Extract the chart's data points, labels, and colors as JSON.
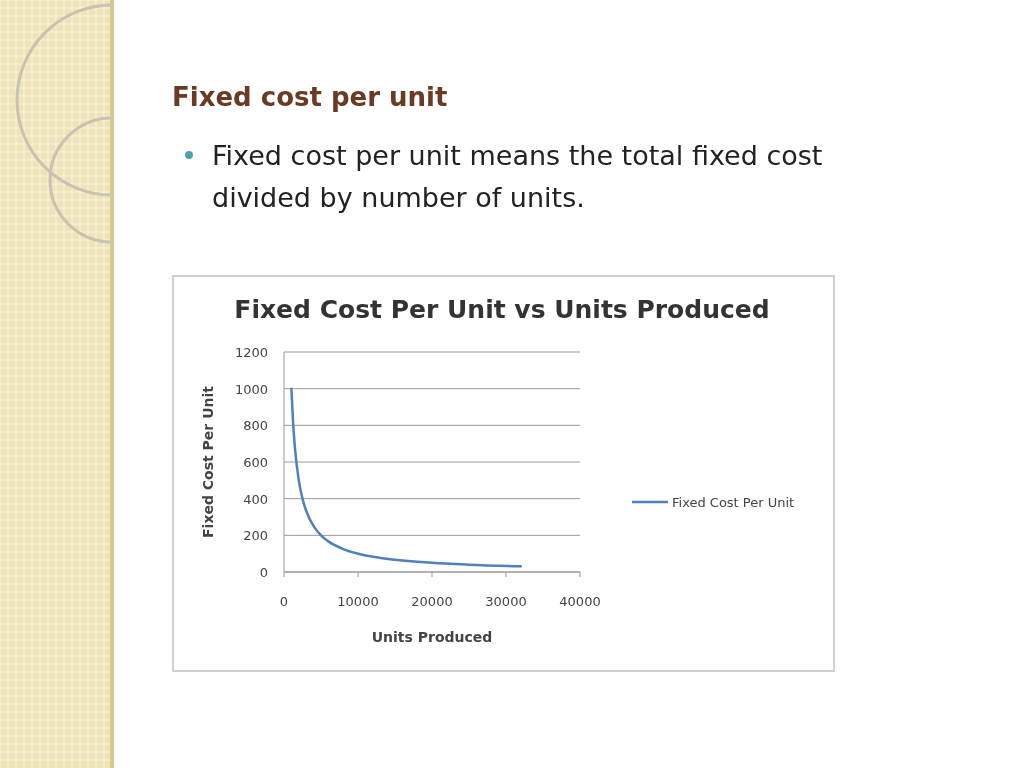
{
  "chart_data": {
    "type": "line",
    "title": "Fixed Cost Per Unit vs Units Produced",
    "xlabel": "Units Produced",
    "ylabel": "Fixed Cost  Per Unit",
    "annotations": [
      "Fixed cost per unit",
      "Fixed cost per unit means the total fixed cost divided by number of units."
    ],
    "series": [
      {
        "name": "Fixed Cost Per Unit",
        "color": "#4f81bd",
        "x": [
          1000,
          1250,
          1500,
          2000,
          2500,
          3000,
          4000,
          5000,
          6000,
          8000,
          10000,
          12000,
          15000,
          20000,
          25000,
          32000
        ],
        "values": [
          1000,
          800,
          667,
          500,
          400,
          333,
          250,
          200,
          167,
          125,
          100,
          83,
          67,
          50,
          40,
          31
        ]
      }
    ],
    "xlim": [
      0,
      40000
    ],
    "xticks": [
      0,
      10000,
      20000,
      30000,
      40000
    ],
    "ylim": [
      0,
      1200
    ],
    "yticks": [
      0,
      200,
      400,
      600,
      800,
      1000,
      1200
    ],
    "grid": "y",
    "legend": "right",
    "marker": "none",
    "line_style": "solid"
  }
}
